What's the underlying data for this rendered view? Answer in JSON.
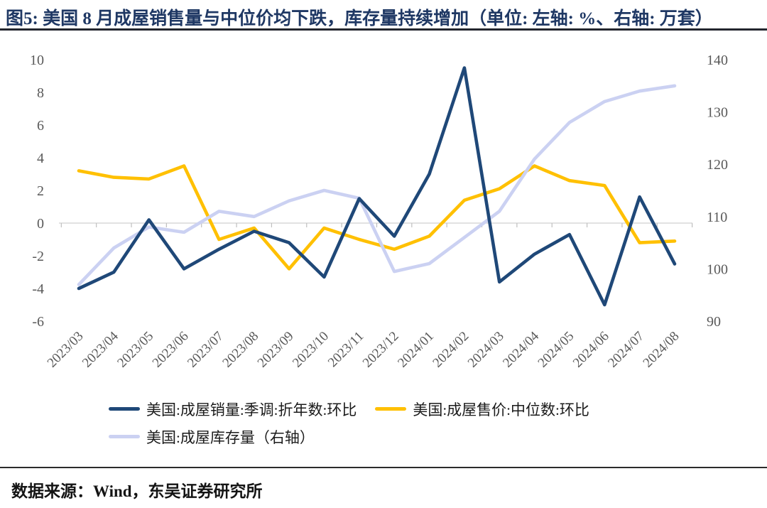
{
  "title": "图5:  美国 8 月成屋销售量与中位价均下跌，库存量持续增加（单位: 左轴: %、右轴: 万套）",
  "source": "数据来源：Wind，东吴证券研究所",
  "colors": {
    "sales_line": "#1F4878",
    "price_line": "#FFC000",
    "inventory_line": "#CBD1F2",
    "title_text": "#1F3864",
    "axis_text": "#595959",
    "gridline": "#D9D9D9",
    "tick": "#BFBFBF"
  },
  "chart_data": {
    "type": "line",
    "x": [
      "2023/03",
      "2023/04",
      "2023/05",
      "2023/06",
      "2023/07",
      "2023/08",
      "2023/09",
      "2023/10",
      "2023/11",
      "2023/12",
      "2024/01",
      "2024/02",
      "2024/03",
      "2024/04",
      "2024/05",
      "2024/06",
      "2024/07",
      "2024/08"
    ],
    "series": [
      {
        "key": "sales-mom",
        "name": "美国:成屋销量:季调:折年数:环比",
        "axis": "left",
        "color": "#1F4878",
        "values": [
          -4.0,
          -3.0,
          0.2,
          -2.8,
          -1.6,
          -0.5,
          -1.2,
          -3.3,
          1.5,
          -0.8,
          3.0,
          9.5,
          -3.6,
          -1.9,
          -0.7,
          -5.0,
          1.6,
          -2.5
        ]
      },
      {
        "key": "median-price-mom",
        "name": "美国:成屋售价:中位数:环比",
        "axis": "left",
        "color": "#FFC000",
        "values": [
          3.2,
          2.8,
          2.7,
          3.5,
          -1.0,
          -0.3,
          -2.8,
          -0.3,
          -1.0,
          -1.6,
          -0.8,
          1.4,
          2.1,
          3.5,
          2.6,
          2.3,
          -1.2,
          -1.1
        ]
      },
      {
        "key": "inventory",
        "name": "美国:成屋库存量（右轴）",
        "axis": "right",
        "color": "#CBD1F2",
        "values": [
          97,
          104,
          108,
          107,
          111,
          110,
          113,
          115,
          113.5,
          99.5,
          101,
          106,
          111,
          121,
          128,
          132,
          134,
          135
        ]
      }
    ],
    "left_axis": {
      "min": -6,
      "max": 10,
      "step": 2,
      "unit": "%",
      "labels": [
        "10",
        "8",
        "6",
        "4",
        "2",
        "0",
        "-2",
        "-4",
        "-6"
      ]
    },
    "right_axis": {
      "min": 90,
      "max": 140,
      "step": 10,
      "unit": "万套",
      "labels": [
        "140",
        "130",
        "120",
        "110",
        "100",
        "90"
      ]
    },
    "legend_position": "bottom",
    "grid": "zero-line-only"
  }
}
